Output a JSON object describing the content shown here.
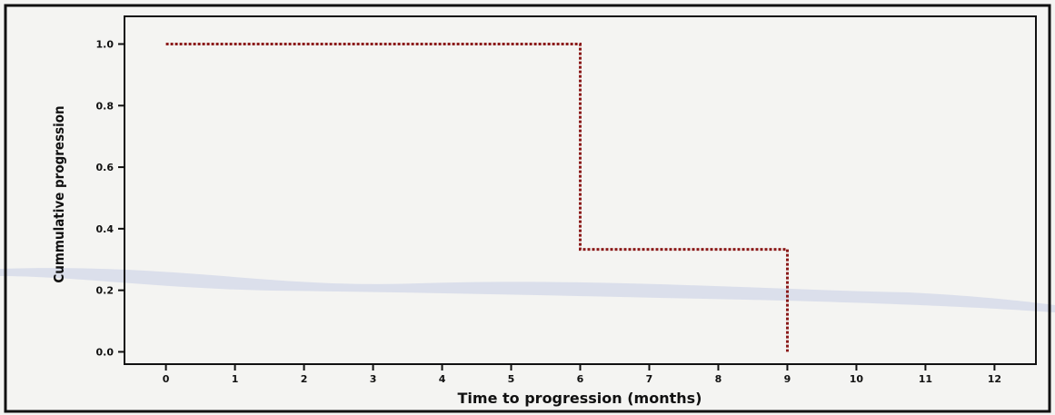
{
  "chart_data": {
    "type": "line",
    "subtype": "step",
    "title": "",
    "xlabel": "Time to progression (months)",
    "ylabel": "Cummulative progression",
    "xlim": [
      -0.6,
      12.6
    ],
    "ylim": [
      -0.04,
      1.09
    ],
    "x_ticks": [
      0,
      1,
      2,
      3,
      4,
      5,
      6,
      7,
      8,
      9,
      10,
      11,
      12
    ],
    "x_tick_labels": [
      "0",
      "1",
      "2",
      "3",
      "4",
      "5",
      "6",
      "7",
      "8",
      "9",
      "10",
      "11",
      "12"
    ],
    "y_ticks": [
      0.0,
      0.2,
      0.4,
      0.6,
      0.8,
      1.0
    ],
    "y_tick_labels": [
      "0.0",
      "0.2",
      "0.4",
      "0.6",
      "0.8",
      "1.0"
    ],
    "grid": false,
    "legend": "none",
    "line_color": "#8b1a1a",
    "line_style": "dotted",
    "series": [
      {
        "x": [
          0,
          6,
          6,
          9,
          9
        ],
        "y": [
          1.0,
          1.0,
          0.333,
          0.333,
          0.0
        ]
      }
    ]
  }
}
